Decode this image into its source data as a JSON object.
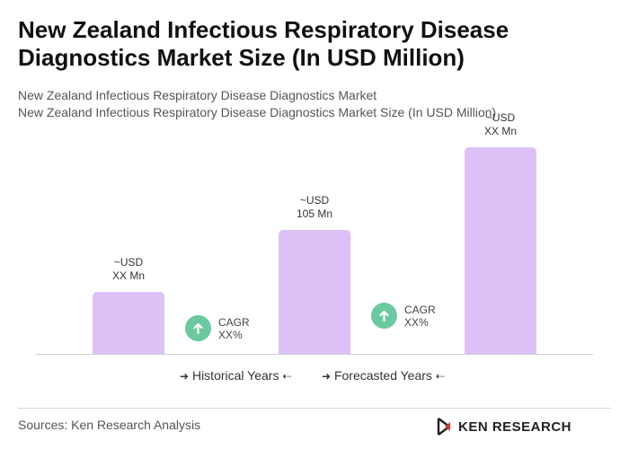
{
  "title": "New Zealand Infectious Respiratory Disease Diagnostics Market Size (In USD Million)",
  "subtitle_1": "New Zealand Infectious Respiratory Disease Diagnostics Market",
  "subtitle_2": "New Zealand Infectious Respiratory Disease Diagnostics Market Size (In USD Million)",
  "colors": {
    "bar": "#dcc1f7",
    "cagr_icon": "#6cc8a0"
  },
  "chart_data": {
    "type": "bar",
    "categories": [
      "",
      "",
      ""
    ],
    "values": [
      30,
      60,
      100
    ],
    "value_labels": [
      {
        "line1": "~USD",
        "line2": "XX Mn"
      },
      {
        "line1": "~USD",
        "line2": "105 Mn"
      },
      {
        "line1": "~USD",
        "line2": "XX Mn"
      }
    ],
    "ylim": [
      0,
      100
    ],
    "grid": false
  },
  "cagr": [
    {
      "label": "CAGR",
      "value": "XX%",
      "icon": "arrow-up-icon"
    },
    {
      "label": "CAGR",
      "value": "XX%",
      "icon": "arrow-up-icon"
    }
  ],
  "legend": {
    "historical": "Historical Years",
    "forecasted": "Forecasted Years"
  },
  "sources": "Sources: Ken Research Analysis",
  "logo": {
    "text": "KEN RESEARCH",
    "icon": "ken-research-logo-icon"
  }
}
